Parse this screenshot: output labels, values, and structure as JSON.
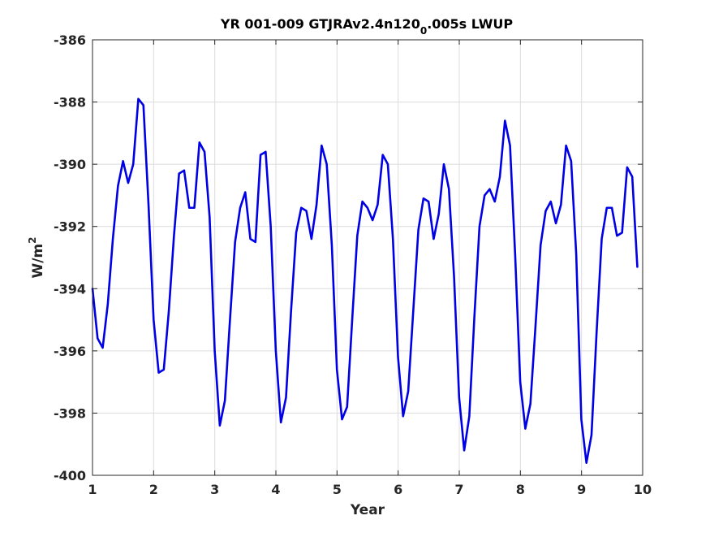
{
  "chart_data": {
    "type": "line",
    "title": {
      "main": "YR 001-009 GTJRAv2.4n120",
      "subscript": "0",
      "rest": ".005s LWUP"
    },
    "xlabel": "Year",
    "ylabel": {
      "base": "W/m",
      "superscript": "2"
    },
    "xlim": [
      1,
      10
    ],
    "ylim": [
      -400,
      -386
    ],
    "xticks": [
      "1",
      "2",
      "3",
      "4",
      "5",
      "6",
      "7",
      "8",
      "9",
      "10"
    ],
    "yticks": [
      "-386",
      "-388",
      "-390",
      "-392",
      "-394",
      "-396",
      "-398",
      "-400"
    ],
    "grid": true,
    "line_color": "#0000e6",
    "series": [
      {
        "x_start": 1.0,
        "x_step": 0.0833,
        "values": [
          -394.0,
          -395.6,
          -395.9,
          -394.5,
          -392.4,
          -390.7,
          -389.9,
          -390.6,
          -390.0,
          -387.9,
          -388.1,
          -391.3,
          -395.0,
          -396.7,
          -396.6,
          -394.7,
          -392.3,
          -390.3,
          -390.2,
          -391.4,
          -391.4,
          -389.3,
          -389.6,
          -391.7,
          -396.0,
          -398.4,
          -397.6,
          -395.0,
          -392.5,
          -391.4,
          -390.9,
          -392.4,
          -392.5,
          -389.7,
          -389.6,
          -392.0,
          -396.0,
          -398.3,
          -397.5,
          -394.7,
          -392.2,
          -391.4,
          -391.5,
          -392.4,
          -391.3,
          -389.4,
          -390.0,
          -392.6,
          -396.6,
          -398.2,
          -397.8,
          -395.0,
          -392.3,
          -391.2,
          -391.4,
          -391.8,
          -391.3,
          -389.7,
          -390.0,
          -392.4,
          -396.2,
          -398.1,
          -397.3,
          -394.7,
          -392.1,
          -391.1,
          -391.2,
          -392.4,
          -391.6,
          -390.0,
          -390.8,
          -393.6,
          -397.5,
          -399.2,
          -398.1,
          -394.9,
          -392.0,
          -391.0,
          -390.8,
          -391.2,
          -390.4,
          -388.6,
          -389.4,
          -392.9,
          -397.0,
          -398.5,
          -397.7,
          -395.2,
          -392.6,
          -391.5,
          -391.2,
          -391.9,
          -391.3,
          -389.4,
          -389.9,
          -392.9,
          -398.2,
          -399.6,
          -398.7,
          -395.4,
          -392.4,
          -391.4,
          -391.4,
          -392.3,
          -392.2,
          -390.1,
          -390.4,
          -393.3
        ]
      }
    ]
  }
}
